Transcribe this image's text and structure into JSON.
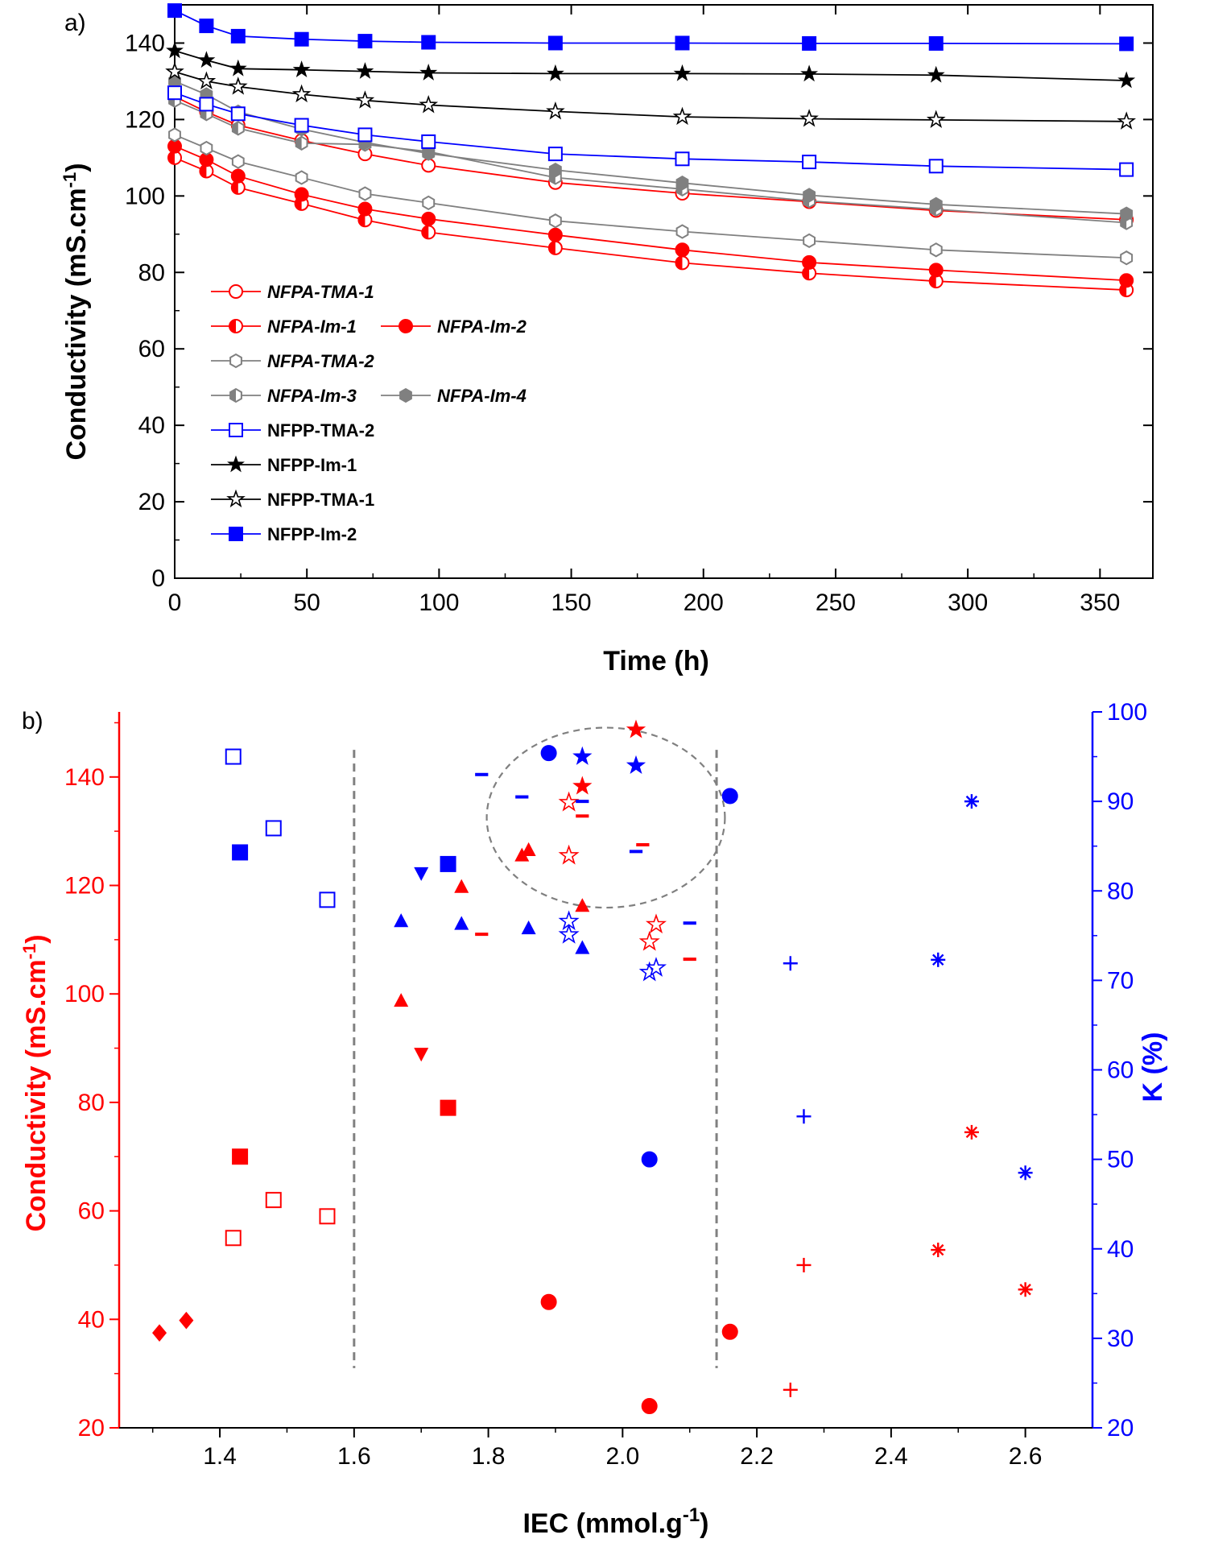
{
  "chart_data": [
    {
      "panel": "a)",
      "type": "line",
      "xlabel": "Time (h)",
      "ylabel": "Conductivity (mS.cm-1)",
      "xlim": [
        0,
        370
      ],
      "ylim": [
        0,
        150
      ],
      "x_ticks": [
        0,
        50,
        100,
        150,
        200,
        250,
        300,
        350
      ],
      "y_ticks": [
        0,
        20,
        40,
        60,
        80,
        100,
        120,
        140
      ],
      "legend_position": "bottom-left",
      "x": [
        0,
        12,
        24,
        48,
        72,
        96,
        144,
        192,
        240,
        288,
        360
      ],
      "series": [
        {
          "name": "NFPA-TMA-1",
          "color": "#ff0000",
          "marker": "circle-open",
          "italic": true,
          "values": [
            126,
            122,
            118.5,
            114.5,
            111,
            108,
            103.5,
            100.7,
            98.5,
            96.2,
            93.8
          ]
        },
        {
          "name": "NFPA-Im-1",
          "color": "#ff0000",
          "marker": "circle-half",
          "italic": true,
          "values": [
            110,
            106.5,
            102.2,
            98,
            93.7,
            90.5,
            86.4,
            82.5,
            79.8,
            77.7,
            75.4
          ]
        },
        {
          "name": "NFPA-Im-2",
          "color": "#ff0000",
          "marker": "circle-filled",
          "italic": true,
          "values": [
            113,
            109.5,
            105.2,
            100.4,
            96.6,
            94,
            89.8,
            85.9,
            82.6,
            80.6,
            77.9
          ]
        },
        {
          "name": "NFPA-TMA-2",
          "color": "#808080",
          "marker": "hexagon-open",
          "italic": true,
          "values": [
            116,
            112.5,
            109,
            104.8,
            100.6,
            98.2,
            93.5,
            90.7,
            88.3,
            85.9,
            83.8
          ]
        },
        {
          "name": "NFPA-Im-3",
          "color": "#808080",
          "marker": "hexagon-half",
          "italic": true,
          "values": [
            125,
            121.5,
            117.7,
            113.8,
            113.5,
            111.6,
            104.8,
            101.8,
            98.7,
            96.5,
            93
          ]
        },
        {
          "name": "NFPA-Im-4",
          "color": "#808080",
          "marker": "hexagon-filled",
          "italic": true,
          "values": [
            130,
            126.5,
            122,
            117.5,
            114,
            111.1,
            106.8,
            103.4,
            100.2,
            97.8,
            95.3
          ]
        },
        {
          "name": "NFPP-TMA-2",
          "color": "#0000ff",
          "marker": "square-open",
          "italic": false,
          "values": [
            127,
            124,
            121.5,
            118.5,
            116,
            114.2,
            111,
            109.7,
            108.9,
            107.8,
            106.9
          ]
        },
        {
          "name": "NFPP-Im-1",
          "color": "#000000",
          "marker": "star-filled",
          "italic": false,
          "values": [
            138,
            135.5,
            133.3,
            133,
            132.6,
            132.2,
            132,
            132,
            131.9,
            131.6,
            130.2
          ]
        },
        {
          "name": "NFPP-TMA-1",
          "color": "#000000",
          "marker": "star-open",
          "italic": false,
          "values": [
            132.5,
            130,
            128.6,
            126.6,
            125,
            123.8,
            122.1,
            120.7,
            120.2,
            119.9,
            119.5
          ]
        },
        {
          "name": "NFPP-Im-2",
          "color": "#0000ff",
          "marker": "square-filled",
          "italic": false,
          "values": [
            148.5,
            144.5,
            141.8,
            141,
            140.5,
            140.2,
            140,
            140,
            139.9,
            139.9,
            139.8
          ]
        }
      ]
    },
    {
      "panel": "b)",
      "type": "scatter",
      "xlabel": "IEC (mmol.g-1)",
      "ylabel_left": "Conductivity (mS.cm-1)",
      "ylabel_right": "K (%)",
      "left_axis_color": "#ff0000",
      "right_axis_color": "#0000ff",
      "xlim": [
        1.25,
        2.7
      ],
      "ylim_left": [
        20,
        152
      ],
      "ylim_right": [
        20,
        100
      ],
      "x_ticks": [
        1.4,
        1.6,
        1.8,
        2.0,
        2.2,
        2.4,
        2.6
      ],
      "y_ticks_left": [
        20,
        40,
        60,
        80,
        100,
        120,
        140
      ],
      "y_ticks_right": [
        20,
        30,
        40,
        50,
        60,
        70,
        80,
        90,
        100
      ],
      "dashed_lines_x": [
        1.6,
        2.14
      ],
      "dashed_line_range": [
        31,
        145
      ],
      "conductivity_points": [
        {
          "marker": "diamond",
          "x": 1.31,
          "y": 37.5
        },
        {
          "marker": "diamond",
          "x": 1.35,
          "y": 39.8
        },
        {
          "marker": "square-open",
          "x": 1.42,
          "y": 55
        },
        {
          "marker": "square-filled",
          "x": 1.43,
          "y": 70
        },
        {
          "marker": "square-open",
          "x": 1.48,
          "y": 62
        },
        {
          "marker": "square-open",
          "x": 1.56,
          "y": 59
        },
        {
          "marker": "triangle-up",
          "x": 1.67,
          "y": 98.7
        },
        {
          "marker": "triangle-down",
          "x": 1.7,
          "y": 89
        },
        {
          "marker": "square-filled",
          "x": 1.74,
          "y": 79
        },
        {
          "marker": "triangle-up",
          "x": 1.76,
          "y": 119.7
        },
        {
          "marker": "dash",
          "x": 1.79,
          "y": 111
        },
        {
          "marker": "triangle-up",
          "x": 1.86,
          "y": 126.5
        },
        {
          "marker": "triangle-up",
          "x": 1.85,
          "y": 125.5
        },
        {
          "marker": "circle",
          "x": 1.89,
          "y": 43.2
        },
        {
          "marker": "star-open",
          "x": 1.92,
          "y": 125.5
        },
        {
          "marker": "star-open",
          "x": 1.92,
          "y": 135.3
        },
        {
          "marker": "star-filled",
          "x": 1.94,
          "y": 138.3
        },
        {
          "marker": "dash",
          "x": 1.94,
          "y": 132.8
        },
        {
          "marker": "triangle-up",
          "x": 1.94,
          "y": 116.2
        },
        {
          "marker": "star-filled",
          "x": 2.02,
          "y": 148.7
        },
        {
          "marker": "dash",
          "x": 2.03,
          "y": 127.5
        },
        {
          "marker": "star-open",
          "x": 2.04,
          "y": 109.6
        },
        {
          "marker": "star-open",
          "x": 2.05,
          "y": 112.8
        },
        {
          "marker": "circle",
          "x": 2.04,
          "y": 24
        },
        {
          "marker": "dash",
          "x": 2.1,
          "y": 106.4
        },
        {
          "marker": "circle",
          "x": 2.16,
          "y": 37.7
        },
        {
          "marker": "plus",
          "x": 2.25,
          "y": 27
        },
        {
          "marker": "plus",
          "x": 2.27,
          "y": 50
        },
        {
          "marker": "asterisk",
          "x": 2.47,
          "y": 52.8
        },
        {
          "marker": "asterisk",
          "x": 2.52,
          "y": 74.5
        },
        {
          "marker": "asterisk",
          "x": 2.6,
          "y": 45.5
        }
      ],
      "k_points": [
        {
          "marker": "square-open",
          "x": 1.42,
          "y": 95
        },
        {
          "marker": "square-filled",
          "x": 1.43,
          "y": 84.3
        },
        {
          "marker": "square-open",
          "x": 1.48,
          "y": 87
        },
        {
          "marker": "square-open",
          "x": 1.56,
          "y": 79
        },
        {
          "marker": "triangle-up",
          "x": 1.67,
          "y": 76.6
        },
        {
          "marker": "triangle-down",
          "x": 1.7,
          "y": 82
        },
        {
          "marker": "square-filled",
          "x": 1.74,
          "y": 83
        },
        {
          "marker": "triangle-up",
          "x": 1.76,
          "y": 76.3
        },
        {
          "marker": "dash",
          "x": 1.79,
          "y": 93
        },
        {
          "marker": "dash",
          "x": 1.85,
          "y": 90.5
        },
        {
          "marker": "triangle-up",
          "x": 1.86,
          "y": 75.8
        },
        {
          "marker": "circle",
          "x": 1.89,
          "y": 95.4
        },
        {
          "marker": "star-filled",
          "x": 1.94,
          "y": 95
        },
        {
          "marker": "dash",
          "x": 1.94,
          "y": 90
        },
        {
          "marker": "star-open",
          "x": 1.92,
          "y": 76.6
        },
        {
          "marker": "star-open",
          "x": 1.92,
          "y": 75.1
        },
        {
          "marker": "triangle-up",
          "x": 1.94,
          "y": 73.6
        },
        {
          "marker": "star-filled",
          "x": 2.02,
          "y": 94
        },
        {
          "marker": "dash",
          "x": 2.02,
          "y": 84.4
        },
        {
          "marker": "star-open",
          "x": 2.04,
          "y": 70.9
        },
        {
          "marker": "star-open",
          "x": 2.05,
          "y": 71.4
        },
        {
          "marker": "circle",
          "x": 2.04,
          "y": 50
        },
        {
          "marker": "dash",
          "x": 2.1,
          "y": 76.4
        },
        {
          "marker": "circle",
          "x": 2.16,
          "y": 90.6
        },
        {
          "marker": "plus",
          "x": 2.25,
          "y": 71.9
        },
        {
          "marker": "plus",
          "x": 2.27,
          "y": 54.8
        },
        {
          "marker": "asterisk",
          "x": 2.47,
          "y": 72.3
        },
        {
          "marker": "asterisk",
          "x": 2.52,
          "y": 90
        },
        {
          "marker": "asterisk",
          "x": 2.6,
          "y": 48.5
        }
      ]
    }
  ]
}
